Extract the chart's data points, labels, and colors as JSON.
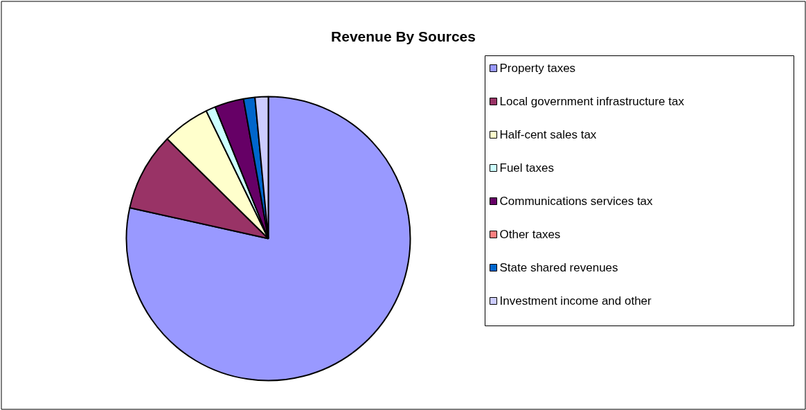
{
  "chart_data": {
    "type": "pie",
    "title": "Revenue By Sources",
    "categories": [
      "Property taxes",
      "Local government infrastructure tax",
      "Half-cent sales tax",
      "Fuel taxes",
      "Communications services tax",
      "Other taxes",
      "State shared revenues",
      "Investment income and other"
    ],
    "values": [
      78.4,
      8.9,
      5.4,
      1.1,
      3.3,
      null,
      1.3,
      1.5
    ],
    "colors": [
      "#9999ff",
      "#993366",
      "#ffffcc",
      "#ccffff",
      "#660066",
      "#ff8080",
      "#0066cc",
      "#ccccff"
    ],
    "legend": "right"
  }
}
